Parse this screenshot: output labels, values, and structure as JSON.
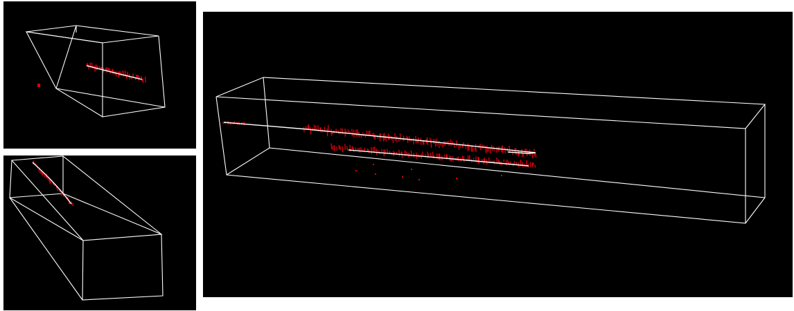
{
  "views": [
    {
      "name": "top-left-view"
    },
    {
      "name": "bottom-left-view"
    },
    {
      "name": "main-view"
    }
  ],
  "colors": {
    "background": "#000000",
    "frame": "#ffffff",
    "hits": "#e0000a",
    "track": "#ffffff",
    "page": "#ffffff"
  }
}
